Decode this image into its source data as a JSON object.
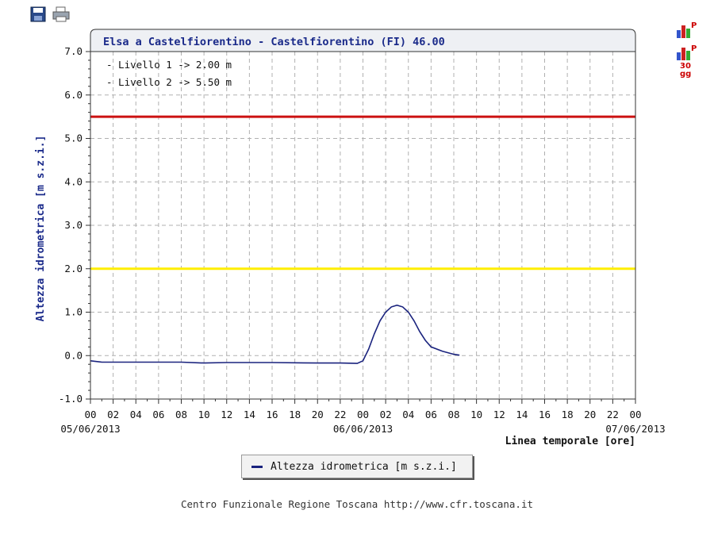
{
  "toolbar": {
    "save_icon": "floppy-disk-icon",
    "print_icon": "printer-icon"
  },
  "side_buttons": [
    {
      "icon": "bar-chart-p-icon",
      "label": "P"
    },
    {
      "icon": "bar-chart-p-30gg-icon",
      "label": "P",
      "sublabel1": "30",
      "sublabel2": "gg"
    }
  ],
  "chart_data": {
    "type": "line",
    "title": "Elsa a Castelfiorentino - Castelfiorentino (FI) 46.00",
    "ylabel": "Altezza idrometrica [m s.z.i.]",
    "xlabel": "Linea temporale [ore]",
    "ylim": [
      -1.0,
      7.0
    ],
    "y_ticks": [
      "-1.0",
      "0.0",
      "1.0",
      "2.0",
      "3.0",
      "4.0",
      "5.0",
      "6.0",
      "7.0"
    ],
    "x_tick_hours": [
      0,
      2,
      4,
      6,
      8,
      10,
      12,
      14,
      16,
      18,
      20,
      22,
      24,
      26,
      28,
      30,
      32,
      34,
      36,
      38,
      40,
      42,
      44,
      46,
      48
    ],
    "x_tick_labels": [
      "00",
      "02",
      "04",
      "06",
      "08",
      "10",
      "12",
      "14",
      "16",
      "18",
      "20",
      "22",
      "00",
      "02",
      "04",
      "06",
      "08",
      "10",
      "12",
      "14",
      "16",
      "18",
      "20",
      "22",
      "00"
    ],
    "date_labels": [
      {
        "hour": 0,
        "text": "05/06/2013"
      },
      {
        "hour": 24,
        "text": "06/06/2013"
      },
      {
        "hour": 48,
        "text": "07/06/2013"
      }
    ],
    "thresholds": [
      {
        "label": "- Livello 1 -> 2.00 m",
        "value": 2.0,
        "color": "#ffee00"
      },
      {
        "label": "- Livello 2 -> 5.50 m",
        "value": 5.5,
        "color": "#cc1111"
      }
    ],
    "series": [
      {
        "name": "Altezza idrometrica [m s.z.i.]",
        "color": "#1a237e",
        "points": [
          [
            0,
            -0.12
          ],
          [
            1,
            -0.15
          ],
          [
            4,
            -0.15
          ],
          [
            8,
            -0.15
          ],
          [
            10,
            -0.17
          ],
          [
            12,
            -0.16
          ],
          [
            16,
            -0.16
          ],
          [
            20,
            -0.17
          ],
          [
            22,
            -0.17
          ],
          [
            23.5,
            -0.18
          ],
          [
            24,
            -0.12
          ],
          [
            24.5,
            0.15
          ],
          [
            25,
            0.5
          ],
          [
            25.5,
            0.8
          ],
          [
            26,
            1.0
          ],
          [
            26.5,
            1.12
          ],
          [
            27,
            1.16
          ],
          [
            27.5,
            1.12
          ],
          [
            28,
            1.0
          ],
          [
            28.5,
            0.8
          ],
          [
            29,
            0.55
          ],
          [
            29.5,
            0.35
          ],
          [
            30,
            0.2
          ],
          [
            31,
            0.1
          ],
          [
            32,
            0.03
          ],
          [
            32.5,
            0.01
          ]
        ]
      }
    ],
    "grid": true,
    "legend_position": "bottom-center"
  },
  "legend": {
    "label": "Altezza idrometrica [m s.z.i.]"
  },
  "footer": {
    "text": "Centro Funzionale Regione Toscana http://www.cfr.toscana.it"
  }
}
